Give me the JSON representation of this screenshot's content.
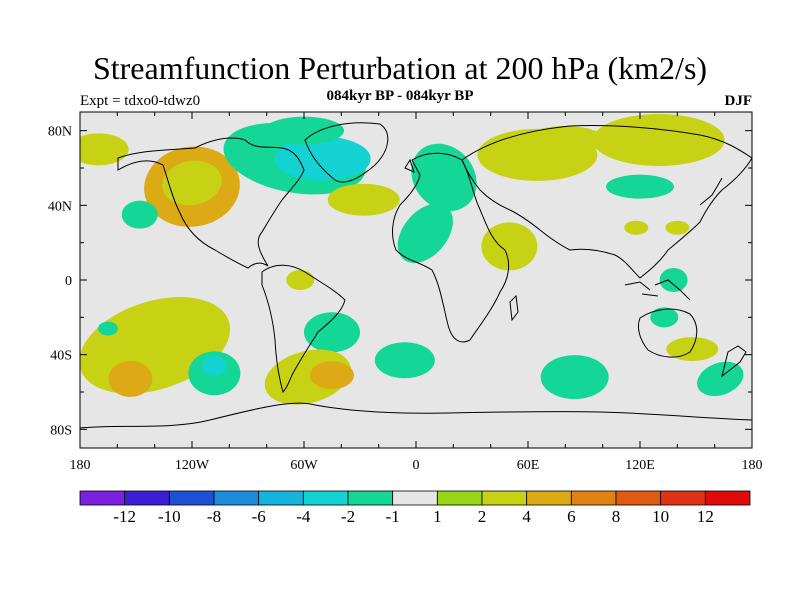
{
  "title": "Streamfunction Perturbation at 200 hPa (km2/s)",
  "subtitle": "084kyr BP - 084kyr BP",
  "experiment": "Expt = tdxo0-tdwz0",
  "season": "DJF",
  "map": {
    "projection": "cylindrical-equidistant",
    "lon_range": [
      -180,
      180
    ],
    "lat_range": [
      -90,
      90
    ],
    "background_color": "#e6e6e6",
    "x_ticks": [
      {
        "lon": -180,
        "label": "180"
      },
      {
        "lon": -120,
        "label": "120W"
      },
      {
        "lon": -60,
        "label": "60W"
      },
      {
        "lon": 0,
        "label": "0"
      },
      {
        "lon": 60,
        "label": "60E"
      },
      {
        "lon": 120,
        "label": "120E"
      },
      {
        "lon": 180,
        "label": "180"
      }
    ],
    "y_ticks": [
      {
        "lat": 80,
        "label": "80N"
      },
      {
        "lat": 40,
        "label": "40N"
      },
      {
        "lat": 0,
        "label": "0"
      },
      {
        "lat": -40,
        "label": "40S"
      },
      {
        "lat": -80,
        "label": "80S"
      }
    ]
  },
  "colorbar": {
    "colors": [
      "#7b1fe0",
      "#3b1ed6",
      "#1e50d6",
      "#1e8cdc",
      "#14b4dc",
      "#14d2d2",
      "#14d696",
      "#e6e6e6",
      "#96d614",
      "#c8d214",
      "#dcaa14",
      "#e08214",
      "#e05a14",
      "#e03214",
      "#e00a0a"
    ],
    "labels": [
      "-12",
      "-10",
      "-8",
      "-6",
      "-4",
      "-2",
      "-1",
      "1",
      "2",
      "4",
      "6",
      "8",
      "10",
      "12"
    ]
  },
  "chart_data": {
    "type": "heatmap",
    "title": "Streamfunction Perturbation at 200 hPa (km2/s)",
    "subtitle": "084kyr BP - 084kyr BP",
    "levels": [
      -12,
      -10,
      -8,
      -6,
      -4,
      -2,
      -1,
      1,
      2,
      4,
      6,
      8,
      10,
      12
    ],
    "features": [
      {
        "lon": -120,
        "lat": 50,
        "value": 4
      },
      {
        "lon": -120,
        "lat": 52,
        "value": 2
      },
      {
        "lon": -148,
        "lat": 35,
        "value": -2
      },
      {
        "lon": -65,
        "lat": 65,
        "value": -2
      },
      {
        "lon": -50,
        "lat": 65,
        "value": -4
      },
      {
        "lon": -60,
        "lat": 80,
        "value": -2
      },
      {
        "lon": -28,
        "lat": 43,
        "value": 2
      },
      {
        "lon": 15,
        "lat": 55,
        "value": -2
      },
      {
        "lon": 5,
        "lat": 25,
        "value": -2
      },
      {
        "lon": 50,
        "lat": 18,
        "value": 2
      },
      {
        "lon": 65,
        "lat": 67,
        "value": 2
      },
      {
        "lon": 80,
        "lat": 75,
        "value": 2
      },
      {
        "lon": 130,
        "lat": 75,
        "value": 2
      },
      {
        "lon": 120,
        "lat": 50,
        "value": -2
      },
      {
        "lon": 118,
        "lat": 28,
        "value": 2
      },
      {
        "lon": 140,
        "lat": 28,
        "value": 2
      },
      {
        "lon": -170,
        "lat": 70,
        "value": 2
      },
      {
        "lon": -62,
        "lat": 0,
        "value": 2
      },
      {
        "lon": -140,
        "lat": -35,
        "value": 2
      },
      {
        "lon": -153,
        "lat": -53,
        "value": 4
      },
      {
        "lon": -108,
        "lat": -50,
        "value": -2
      },
      {
        "lon": -108,
        "lat": -46,
        "value": -4
      },
      {
        "lon": -45,
        "lat": -28,
        "value": -2
      },
      {
        "lon": -58,
        "lat": -52,
        "value": 2
      },
      {
        "lon": -45,
        "lat": -51,
        "value": 4
      },
      {
        "lon": -6,
        "lat": -43,
        "value": -2
      },
      {
        "lon": 85,
        "lat": -52,
        "value": -2
      },
      {
        "lon": 138,
        "lat": 0,
        "value": -2
      },
      {
        "lon": 133,
        "lat": -20,
        "value": -2
      },
      {
        "lon": 148,
        "lat": -37,
        "value": 2
      },
      {
        "lon": 163,
        "lat": -53,
        "value": -2
      },
      {
        "lon": -165,
        "lat": -26,
        "value": -2
      }
    ]
  }
}
